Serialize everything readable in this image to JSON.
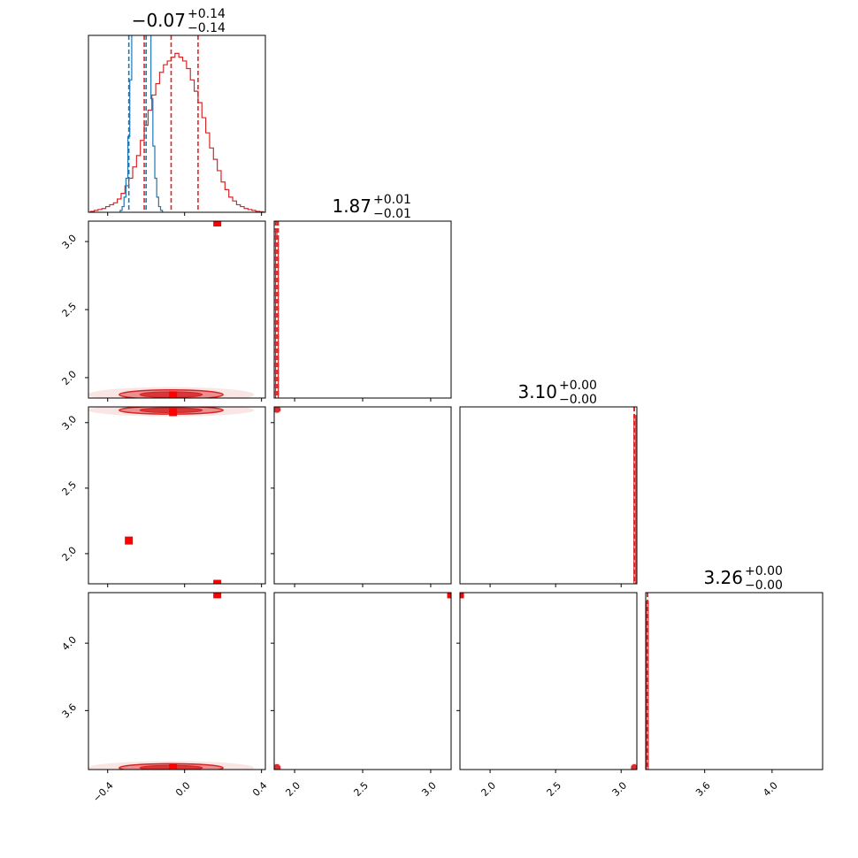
{
  "chart_data": {
    "type": "corner",
    "colors": {
      "primary": "#d62728",
      "secondary": "#1f77b4",
      "marker": "#ff0000",
      "frame": "#000000"
    },
    "parameters": [
      {
        "range": [
          -0.5,
          0.42
        ],
        "ticks": [
          -0.4,
          0.0,
          0.4
        ],
        "tick_labels": [
          "−0.4",
          "0.0",
          "0.4"
        ],
        "title": {
          "value": "−0.07",
          "plus": "+0.14",
          "minus": "−0.14"
        },
        "quantile_lines_primary": [
          -0.21,
          -0.07,
          0.07
        ],
        "quantile_lines_secondary": [
          -0.29,
          -0.2
        ]
      },
      {
        "range": [
          1.85,
          3.15
        ],
        "ticks": [
          2.0,
          2.5,
          3.0
        ],
        "tick_labels": [
          "2.0",
          "2.5",
          "3.0"
        ],
        "title": {
          "value": "1.87",
          "plus": "+0.01",
          "minus": "−0.01"
        },
        "quantile_lines_primary": [
          1.86,
          1.87,
          1.88
        ]
      },
      {
        "range": [
          1.77,
          3.12
        ],
        "ticks": [
          2.0,
          2.5,
          3.0
        ],
        "tick_labels": [
          "2.0",
          "2.5",
          "3.0"
        ],
        "title": {
          "value": "3.10",
          "plus": "+0.00",
          "minus": "−0.00"
        },
        "quantile_lines_primary": [
          3.1,
          3.1,
          3.1
        ]
      },
      {
        "range": [
          3.25,
          4.3
        ],
        "ticks": [
          3.6,
          4.0
        ],
        "tick_labels": [
          "3.6",
          "4.0"
        ],
        "title": {
          "value": "3.26",
          "plus": "+0.00",
          "minus": "−0.00"
        },
        "quantile_lines_primary": [
          3.26,
          3.26,
          3.26
        ]
      }
    ],
    "histograms": [
      {
        "param": 0,
        "series": "primary",
        "x": [
          -0.48,
          -0.46,
          -0.44,
          -0.42,
          -0.4,
          -0.38,
          -0.36,
          -0.34,
          -0.32,
          -0.3,
          -0.28,
          -0.26,
          -0.24,
          -0.22,
          -0.2,
          -0.18,
          -0.16,
          -0.14,
          -0.12,
          -0.1,
          -0.08,
          -0.06,
          -0.04,
          -0.02,
          0.0,
          0.02,
          0.04,
          0.06,
          0.08,
          0.1,
          0.12,
          0.14,
          0.16,
          0.18,
          0.2,
          0.22,
          0.24,
          0.26,
          0.28,
          0.3,
          0.32,
          0.34,
          0.36,
          0.38,
          0.4
        ],
        "y": [
          0.5,
          1,
          1.5,
          2,
          3,
          4,
          5,
          7,
          10,
          14,
          18,
          24,
          30,
          38,
          46,
          54,
          62,
          68,
          74,
          78,
          80,
          82,
          84,
          82,
          80,
          76,
          70,
          64,
          58,
          50,
          42,
          34,
          28,
          22,
          16,
          12,
          8,
          6,
          4,
          3,
          2,
          1.5,
          1,
          0.5,
          0.3
        ]
      },
      {
        "param": 0,
        "series": "secondary",
        "x": [
          -0.33,
          -0.32,
          -0.31,
          -0.3,
          -0.29,
          -0.28,
          -0.27,
          -0.26,
          -0.25,
          -0.24,
          -0.23,
          -0.22,
          -0.21,
          -0.2,
          -0.19,
          -0.18,
          -0.17,
          -0.16,
          -0.15,
          -0.14,
          -0.13,
          -0.12
        ],
        "y": [
          1,
          3,
          8,
          18,
          40,
          70,
          110,
          150,
          180,
          200,
          210,
          200,
          190,
          170,
          130,
          95,
          60,
          35,
          18,
          8,
          3,
          1
        ]
      },
      {
        "param": 1,
        "series": "primary",
        "x": [
          1.865,
          1.875
        ],
        "y": [
          100,
          95
        ]
      },
      {
        "param": 2,
        "series": "primary",
        "x": [
          3.105
        ],
        "y": [
          100
        ]
      },
      {
        "param": 3,
        "series": "primary",
        "x": [
          3.26
        ],
        "y": [
          100
        ]
      }
    ],
    "markers": [
      {
        "x_param": 0,
        "y_param": 1,
        "x": 0.17,
        "y": 3.14
      },
      {
        "x_param": 0,
        "y_param": 1,
        "x": -0.06,
        "y": 1.87
      },
      {
        "x_param": 0,
        "y_param": 2,
        "x": -0.06,
        "y": 3.08
      },
      {
        "x_param": 0,
        "y_param": 2,
        "x": -0.29,
        "y": 2.1
      },
      {
        "x_param": 0,
        "y_param": 2,
        "x": 0.17,
        "y": 1.77
      },
      {
        "x_param": 0,
        "y_param": 3,
        "x": 0.17,
        "y": 4.29
      },
      {
        "x_param": 0,
        "y_param": 3,
        "x": -0.06,
        "y": 3.26
      },
      {
        "x_param": 1,
        "y_param": 3,
        "x": 3.15,
        "y": 4.29
      },
      {
        "x_param": 2,
        "y_param": 3,
        "x": 1.77,
        "y": 4.29
      }
    ],
    "contours": [
      {
        "x_param": 0,
        "y_param": 1,
        "cx": -0.07,
        "cy": 1.875,
        "sx": 0.27,
        "sy": 0.035
      },
      {
        "x_param": 0,
        "y_param": 2,
        "cx": -0.07,
        "cy": 3.095,
        "sx": 0.27,
        "sy": 0.03
      },
      {
        "x_param": 0,
        "y_param": 3,
        "cx": -0.07,
        "cy": 3.26,
        "sx": 0.27,
        "sy": 0.025
      },
      {
        "x_param": 1,
        "y_param": 2,
        "cx": 1.87,
        "cy": 3.1,
        "sx": 0.022,
        "sy": 0.02
      },
      {
        "x_param": 1,
        "y_param": 3,
        "cx": 1.87,
        "cy": 3.26,
        "sx": 0.022,
        "sy": 0.018
      },
      {
        "x_param": 2,
        "y_param": 3,
        "cx": 3.1,
        "cy": 3.26,
        "sx": 0.02,
        "sy": 0.018
      }
    ]
  }
}
